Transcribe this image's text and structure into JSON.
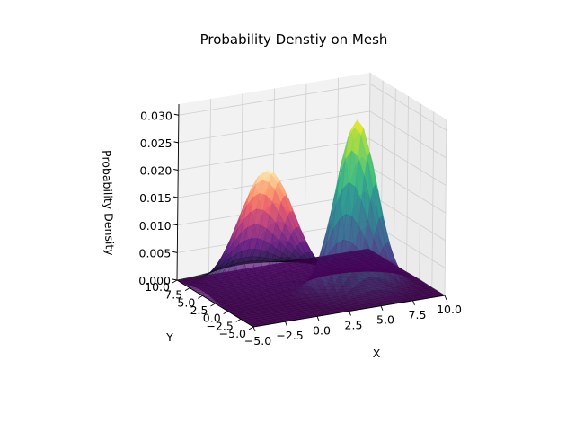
{
  "chart_data": {
    "type": "surface3d",
    "title": "Probability Denstiy on Mesh",
    "xlabel": "X",
    "ylabel": "Y",
    "zlabel": "Probability Density",
    "xlim": [
      -5.0,
      10.0
    ],
    "ylim": [
      -5.0,
      10.0
    ],
    "zlim": [
      0.0,
      0.032
    ],
    "x_ticks": [
      "−5.0",
      "−2.5",
      "0.0",
      "2.5",
      "5.0",
      "7.5",
      "10.0"
    ],
    "y_ticks": [
      "−5.0",
      "−2.5",
      "0.0",
      "2.5",
      "5.0",
      "7.5",
      "10.0"
    ],
    "z_ticks": [
      "0.000",
      "0.005",
      "0.010",
      "0.015",
      "0.020",
      "0.025",
      "0.030"
    ],
    "x_tick_values": [
      -5.0,
      -2.5,
      0.0,
      2.5,
      5.0,
      7.5,
      10.0
    ],
    "y_tick_values": [
      -5.0,
      -2.5,
      0.0,
      2.5,
      5.0,
      7.5,
      10.0
    ],
    "z_tick_values": [
      0.0,
      0.005,
      0.01,
      0.015,
      0.02,
      0.025,
      0.03
    ],
    "grid": true,
    "series": [
      {
        "colormap": "magma",
        "center": [
          0.0,
          5.0
        ],
        "sigma": [
          2.0,
          2.0
        ],
        "peak": 0.021
      },
      {
        "colormap": "viridis",
        "center": [
          5.0,
          0.0
        ],
        "sigma": [
          1.5,
          1.5
        ],
        "peak": 0.031
      }
    ]
  }
}
